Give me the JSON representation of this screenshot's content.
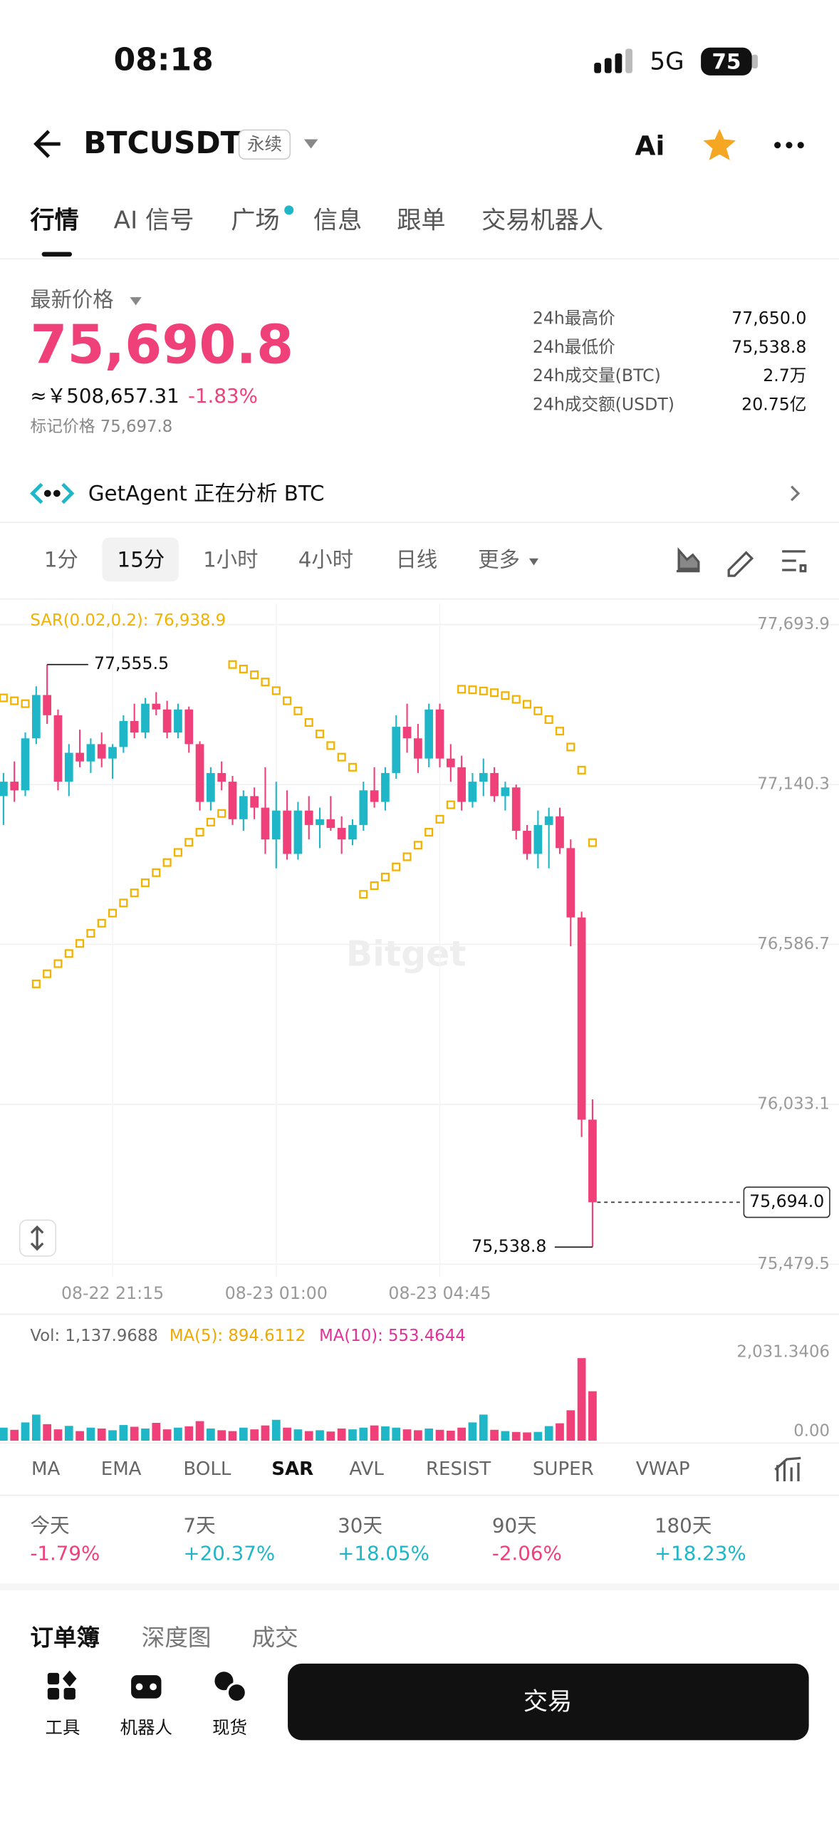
{
  "status": {
    "time": "08:18",
    "network": "5G",
    "battery": "75"
  },
  "header": {
    "symbol": "BTCUSDT",
    "badge": "永续",
    "ai": "Ai"
  },
  "tabs": [
    "行情",
    "AI 信号",
    "广场",
    "信息",
    "跟单",
    "交易机器人"
  ],
  "price": {
    "label": "最新价格",
    "last": "75,690.8",
    "cny": "≈￥508,657.31",
    "change": "-1.83%",
    "mark": "标记价格 75,697.8"
  },
  "stats": [
    {
      "label": "24h最高价",
      "value": "77,650.0"
    },
    {
      "label": "24h最低价",
      "value": "75,538.8"
    },
    {
      "label": "24h成交量(BTC)",
      "value": "2.7万"
    },
    {
      "label": "24h成交额(USDT)",
      "value": "20.75亿"
    }
  ],
  "agent": "GetAgent 正在分析 BTC",
  "intervals": [
    "1分",
    "15分",
    "1小时",
    "4小时",
    "日线",
    "更多"
  ],
  "watermark": "Bitget",
  "chart_data": [
    {
      "type": "candlestick",
      "indicator_label": "SAR(0.02,0.2): 76,938.9",
      "up_color": "#1fb6c8",
      "down_color": "#f0407a",
      "sar_color": "#f2b200",
      "ylim": [
        75479.5,
        77693.9
      ],
      "yticks": [
        {
          "value": 77693.9,
          "label": "77,693.9"
        },
        {
          "value": 77140.3,
          "label": "77,140.3"
        },
        {
          "value": 76586.7,
          "label": "76,586.7"
        },
        {
          "value": 76033.1,
          "label": "76,033.1"
        },
        {
          "value": 75479.5,
          "label": "75,479.5"
        }
      ],
      "xticks": [
        {
          "value": 10,
          "label": "08-22 21:15"
        },
        {
          "value": 25,
          "label": "08-23 01:00"
        },
        {
          "value": 40,
          "label": "08-23 04:45"
        }
      ],
      "high_label": {
        "value": 77555.5,
        "label": "77,555.5"
      },
      "low_label": {
        "value": 75538.8,
        "label": "75,538.8"
      },
      "current": {
        "value": 75694,
        "label": "75,694.0"
      },
      "open": [
        77100,
        77150,
        77120,
        77300,
        77450,
        77380,
        77150,
        77250,
        77220,
        77280,
        77230,
        77270,
        77360,
        77320,
        77420,
        77400,
        77320,
        77400,
        77280,
        77080,
        77180,
        77150,
        77020,
        77100,
        77060,
        76950,
        77050,
        76900,
        77050,
        77000,
        77020,
        76990,
        76950,
        77000,
        77120,
        77080,
        77180,
        77340,
        77300,
        77230,
        77400,
        77230,
        77200,
        77080,
        77150,
        77180,
        77100,
        77130,
        76980,
        76900,
        77000,
        77030,
        76920,
        76680,
        75980
      ],
      "high": [
        77180,
        77220,
        77320,
        77480,
        77555.5,
        77400,
        77280,
        77330,
        77300,
        77320,
        77280,
        77380,
        77420,
        77440,
        77460,
        77430,
        77420,
        77410,
        77290,
        77200,
        77220,
        77170,
        77120,
        77130,
        77200,
        77150,
        77120,
        77080,
        77100,
        77060,
        77100,
        77030,
        77020,
        77150,
        77200,
        77200,
        77380,
        77420,
        77350,
        77420,
        77420,
        77280,
        77240,
        77180,
        77230,
        77200,
        77150,
        77140,
        77000,
        77050,
        77060,
        77060,
        76950,
        76700,
        76050
      ],
      "low": [
        77000,
        77080,
        77100,
        77280,
        77350,
        77120,
        77100,
        77200,
        77180,
        77200,
        77160,
        77250,
        77300,
        77300,
        77380,
        77300,
        77300,
        77250,
        77050,
        77050,
        77120,
        77000,
        76980,
        77020,
        76900,
        76850,
        76880,
        76880,
        76950,
        76920,
        76980,
        76900,
        76930,
        76980,
        77060,
        77050,
        77160,
        77250,
        77180,
        77200,
        77200,
        77150,
        77050,
        77060,
        77100,
        77080,
        77050,
        76950,
        76880,
        76850,
        76850,
        76900,
        76580,
        75920,
        75538.8
      ],
      "close": [
        77150,
        77120,
        77300,
        77450,
        77380,
        77150,
        77250,
        77220,
        77280,
        77230,
        77270,
        77360,
        77320,
        77420,
        77400,
        77320,
        77400,
        77280,
        77080,
        77180,
        77150,
        77020,
        77100,
        77060,
        76950,
        77050,
        76900,
        77050,
        77000,
        77020,
        76990,
        76950,
        77000,
        77120,
        77080,
        77180,
        77340,
        77300,
        77230,
        77400,
        77230,
        77200,
        77080,
        77150,
        77180,
        77100,
        77130,
        76980,
        76900,
        77000,
        77030,
        76920,
        76680,
        75980,
        75694
      ],
      "sar": [
        77440,
        77430,
        77420,
        76450,
        76485,
        76520,
        76555,
        76590,
        76625,
        76660,
        76695,
        76730,
        76765,
        76800,
        76835,
        76870,
        76905,
        76940,
        76975,
        77010,
        77040,
        77555.5,
        77540,
        77520,
        77495,
        77465,
        77430,
        77395,
        77355,
        77315,
        77275,
        77235,
        77200,
        76760,
        76790,
        76820,
        76855,
        76890,
        76930,
        76975,
        77020,
        77070,
        77470,
        77468,
        77464,
        77458,
        77448,
        77435,
        77418,
        77395,
        77365,
        77325,
        77270,
        77190,
        76938.9
      ]
    },
    {
      "type": "bar",
      "vol_label": "Vol: 1,137.9688",
      "ma5_label": "MA(5): 894.6112",
      "ma10_label": "MA(10): 553.4644",
      "ylim": [
        0,
        2031.3406
      ],
      "yticks": [
        {
          "value": 2031.3406,
          "label": "2,031.3406"
        },
        {
          "value": 0,
          "label": "0.00"
        }
      ],
      "values": [
        300,
        250,
        420,
        600,
        380,
        260,
        340,
        220,
        300,
        280,
        240,
        360,
        320,
        280,
        410,
        260,
        300,
        330,
        450,
        280,
        240,
        220,
        300,
        260,
        350,
        480,
        300,
        260,
        220,
        240,
        210,
        280,
        260,
        300,
        350,
        330,
        300,
        260,
        240,
        280,
        250,
        230,
        300,
        420,
        600,
        250,
        220,
        200,
        190,
        201.588,
        335.0872,
        400,
        700,
        1900,
        1137.9688
      ]
    }
  ],
  "indicators": [
    "MA",
    "EMA",
    "BOLL",
    "SAR",
    "AVL",
    "RESIST",
    "SUPER",
    "VWAP"
  ],
  "performance": [
    {
      "label": "今天",
      "value": "-1.79%"
    },
    {
      "label": "7天",
      "value": "+20.37%"
    },
    {
      "label": "30天",
      "value": "+18.05%"
    },
    {
      "label": "90天",
      "value": "-2.06%"
    },
    {
      "label": "180天",
      "value": "+18.23%"
    }
  ],
  "order_tabs": [
    "订单簿",
    "深度图",
    "成交"
  ],
  "nav": [
    "工具",
    "机器人",
    "现货"
  ],
  "trade_button": "交易"
}
